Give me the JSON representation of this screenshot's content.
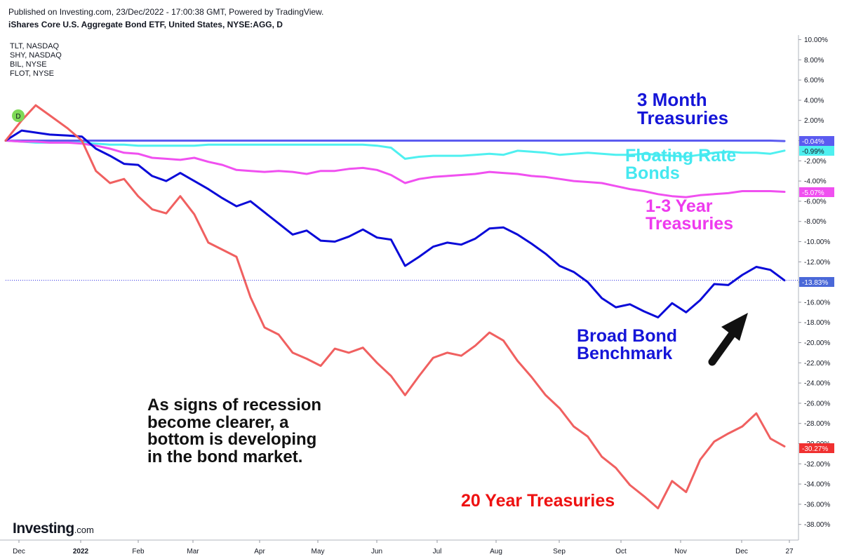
{
  "header": {
    "published": "Published on Investing.com, 23/Dec/2022 - 17:00:38 GMT, Powered by TradingView.",
    "symbol": "iShares Core U.S. Aggregate Bond ETF, United States, NYSE:AGG, D"
  },
  "compare_symbols": [
    "TLT, NASDAQ",
    "SHY, NASDAQ",
    "BIL, NYSE",
    "FLOT, NYSE"
  ],
  "dividend_marker": "D",
  "logo": {
    "name": "Investing",
    "suffix": ".com"
  },
  "annotations": {
    "three_month": [
      "3 Month",
      "Treasuries"
    ],
    "floating": [
      "Floating Rate",
      "Bonds"
    ],
    "one_three": [
      "1-3 Year",
      "Treasuries"
    ],
    "broad": [
      "Broad Bond",
      "Benchmark"
    ],
    "recession": [
      "As signs of recession",
      "become clearer, a",
      "bottom is developing",
      "in the bond market."
    ],
    "twenty": "20 Year Treasuries"
  },
  "colors": {
    "bil": "#5b5bf0",
    "flot": "#4ff0f0",
    "shy": "#f050f0",
    "agg": "#0a0ad8",
    "tlt": "#f06060",
    "annot_blue": "#1515d8",
    "annot_cyan": "#45e8f0",
    "annot_magenta": "#ee3aee",
    "annot_red": "#ee1111"
  },
  "chart_data": {
    "type": "line",
    "title": "iShares Core U.S. Aggregate Bond ETF, United States, NYSE:AGG, D",
    "x_tick_labels": [
      "Dec",
      "2022",
      "Feb",
      "Mar",
      "Apr",
      "May",
      "Jun",
      "Jul",
      "Aug",
      "Sep",
      "Oct",
      "Nov",
      "Dec",
      "27"
    ],
    "y_tick_labels": [
      "10.00%",
      "8.00%",
      "6.00%",
      "4.00%",
      "2.00%",
      "0.00%",
      "-2.00%",
      "-4.00%",
      "-6.00%",
      "-8.00%",
      "-10.00%",
      "-12.00%",
      "-14.00%",
      "-16.00%",
      "-18.00%",
      "-20.00%",
      "-22.00%",
      "-24.00%",
      "-26.00%",
      "-28.00%",
      "-30.00%",
      "-32.00%",
      "-34.00%",
      "-36.00%",
      "-38.00%"
    ],
    "ylim": [
      -38.5,
      10
    ],
    "ylabel": "",
    "xlabel": "",
    "x_dates": [
      "2021-11-30",
      "2021-12-08",
      "2021-12-15",
      "2021-12-22",
      "2021-12-31",
      "2022-01-07",
      "2022-01-14",
      "2022-01-21",
      "2022-01-28",
      "2022-02-04",
      "2022-02-11",
      "2022-02-18",
      "2022-02-25",
      "2022-03-04",
      "2022-03-11",
      "2022-03-18",
      "2022-03-25",
      "2022-04-01",
      "2022-04-08",
      "2022-04-15",
      "2022-04-22",
      "2022-04-29",
      "2022-05-06",
      "2022-05-13",
      "2022-05-20",
      "2022-05-27",
      "2022-06-03",
      "2022-06-10",
      "2022-06-17",
      "2022-06-24",
      "2022-07-01",
      "2022-07-08",
      "2022-07-15",
      "2022-07-22",
      "2022-07-29",
      "2022-08-05",
      "2022-08-12",
      "2022-08-19",
      "2022-08-26",
      "2022-09-02",
      "2022-09-09",
      "2022-09-16",
      "2022-09-23",
      "2022-09-30",
      "2022-10-07",
      "2022-10-14",
      "2022-10-21",
      "2022-10-28",
      "2022-11-04",
      "2022-11-11",
      "2022-11-18",
      "2022-11-25",
      "2022-12-02",
      "2022-12-09",
      "2022-12-16",
      "2022-12-23"
    ],
    "series": [
      {
        "name": "BIL, NYSE",
        "color": "#5b5bf0",
        "last_label": "-0.04%",
        "values": [
          0.0,
          0.0,
          0.0,
          0.0,
          0.0,
          0.0,
          0.0,
          0.0,
          0.0,
          0.0,
          0.0,
          0.0,
          0.0,
          0.0,
          0.0,
          0.0,
          0.0,
          0.0,
          0.0,
          0.0,
          0.0,
          0.0,
          0.0,
          0.0,
          0.0,
          0.0,
          0.0,
          0.0,
          0.0,
          0.0,
          0.0,
          0.0,
          0.0,
          0.0,
          0.0,
          0.0,
          0.0,
          0.0,
          0.0,
          0.0,
          0.0,
          0.0,
          0.0,
          0.0,
          0.0,
          0.0,
          0.0,
          0.0,
          0.0,
          0.0,
          0.0,
          0.0,
          0.0,
          0.0,
          0.0,
          -0.04
        ]
      },
      {
        "name": "FLOT, NYSE",
        "color": "#4ff0f0",
        "last_label": "-0.99%",
        "values": [
          0.0,
          -0.1,
          -0.2,
          -0.2,
          -0.2,
          -0.2,
          -0.3,
          -0.4,
          -0.4,
          -0.5,
          -0.5,
          -0.5,
          -0.5,
          -0.5,
          -0.4,
          -0.4,
          -0.4,
          -0.4,
          -0.4,
          -0.4,
          -0.4,
          -0.4,
          -0.4,
          -0.4,
          -0.4,
          -0.4,
          -0.5,
          -0.7,
          -1.8,
          -1.6,
          -1.5,
          -1.5,
          -1.5,
          -1.4,
          -1.3,
          -1.4,
          -1.0,
          -1.1,
          -1.2,
          -1.4,
          -1.3,
          -1.2,
          -1.3,
          -1.4,
          -1.4,
          -1.3,
          -1.4,
          -1.5,
          -1.6,
          -1.4,
          -1.2,
          -1.1,
          -1.2,
          -1.2,
          -1.3,
          -0.99
        ]
      },
      {
        "name": "SHY, NASDAQ",
        "color": "#f050f0",
        "last_label": "-5.07%",
        "values": [
          0.0,
          -0.1,
          -0.1,
          -0.2,
          -0.2,
          -0.3,
          -0.5,
          -0.8,
          -1.2,
          -1.3,
          -1.7,
          -1.8,
          -1.9,
          -1.7,
          -2.1,
          -2.4,
          -2.9,
          -3.0,
          -3.1,
          -3.0,
          -3.1,
          -3.3,
          -3.0,
          -3.0,
          -2.8,
          -2.7,
          -2.9,
          -3.4,
          -4.2,
          -3.8,
          -3.6,
          -3.5,
          -3.4,
          -3.3,
          -3.1,
          -3.2,
          -3.3,
          -3.5,
          -3.6,
          -3.8,
          -4.0,
          -4.1,
          -4.2,
          -4.5,
          -4.8,
          -5.0,
          -5.3,
          -5.5,
          -5.6,
          -5.4,
          -5.3,
          -5.2,
          -5.0,
          -5.0,
          -5.0,
          -5.07
        ]
      },
      {
        "name": "AGG",
        "color": "#0a0ad8",
        "last_label": "-13.83%",
        "values": [
          0.0,
          1.0,
          0.8,
          0.6,
          0.5,
          0.4,
          -0.8,
          -1.5,
          -2.3,
          -2.4,
          -3.5,
          -4.0,
          -3.2,
          -4.0,
          -4.8,
          -5.7,
          -6.5,
          -6.0,
          -7.1,
          -8.2,
          -9.3,
          -8.9,
          -9.9,
          -10.0,
          -9.5,
          -8.8,
          -9.6,
          -9.8,
          -12.4,
          -11.5,
          -10.5,
          -10.1,
          -10.3,
          -9.7,
          -8.7,
          -8.6,
          -9.3,
          -10.2,
          -11.2,
          -12.4,
          -13.0,
          -14.0,
          -15.6,
          -16.5,
          -16.2,
          -16.9,
          -17.5,
          -16.1,
          -17.0,
          -15.8,
          -14.2,
          -14.3,
          -13.3,
          -12.5,
          -12.8,
          -13.83
        ]
      },
      {
        "name": "TLT, NASDAQ",
        "color": "#f06060",
        "last_label": "-30.27%",
        "values": [
          0.0,
          2.0,
          3.5,
          2.5,
          1.2,
          0.0,
          -3.0,
          -4.2,
          -3.8,
          -5.5,
          -6.8,
          -7.2,
          -5.5,
          -7.3,
          -10.1,
          -10.8,
          -11.5,
          -15.5,
          -18.5,
          -19.2,
          -21.0,
          -21.6,
          -22.3,
          -20.6,
          -21.0,
          -20.5,
          -22.0,
          -23.3,
          -25.2,
          -23.3,
          -21.5,
          -21.0,
          -21.3,
          -20.3,
          -19.0,
          -19.8,
          -21.8,
          -23.4,
          -25.2,
          -26.5,
          -28.3,
          -29.3,
          -31.3,
          -32.4,
          -34.1,
          -35.2,
          -36.4,
          -33.7,
          -34.8,
          -31.6,
          -29.8,
          -29.0,
          -28.3,
          -27.0,
          -29.5,
          -30.27
        ]
      }
    ]
  }
}
